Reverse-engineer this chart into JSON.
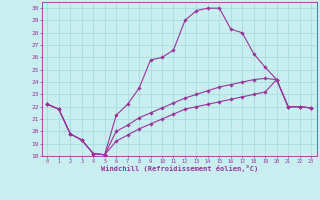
{
  "xlabel": "Windchill (Refroidissement éolien,°C)",
  "xlim": [
    -0.5,
    23.5
  ],
  "ylim": [
    18,
    30.5
  ],
  "yticks": [
    18,
    19,
    20,
    21,
    22,
    23,
    24,
    25,
    26,
    27,
    28,
    29,
    30
  ],
  "xticks": [
    0,
    1,
    2,
    3,
    4,
    5,
    6,
    7,
    8,
    9,
    10,
    11,
    12,
    13,
    14,
    15,
    16,
    17,
    18,
    19,
    20,
    21,
    22,
    23
  ],
  "bg_color": "#c8eef0",
  "grid_color": "#aadddd",
  "line_color": "#993399",
  "series1": [
    22.2,
    21.8,
    19.8,
    19.3,
    18.2,
    18.1,
    21.3,
    22.2,
    23.5,
    25.8,
    26.0,
    26.6,
    29.0,
    29.8,
    30.0,
    30.0,
    28.3,
    28.0,
    26.3,
    25.2,
    24.2,
    22.0,
    22.0,
    21.9
  ],
  "series2": [
    22.2,
    21.8,
    19.8,
    19.3,
    18.2,
    18.1,
    20.0,
    20.5,
    21.1,
    21.5,
    21.9,
    22.3,
    22.7,
    23.0,
    23.3,
    23.6,
    23.8,
    24.0,
    24.2,
    24.3,
    24.2,
    22.0,
    22.0,
    21.9
  ],
  "series3": [
    22.2,
    21.8,
    19.8,
    19.3,
    18.2,
    18.1,
    19.2,
    19.7,
    20.2,
    20.6,
    21.0,
    21.4,
    21.8,
    22.0,
    22.2,
    22.4,
    22.6,
    22.8,
    23.0,
    23.2,
    24.2,
    22.0,
    22.0,
    21.9
  ]
}
